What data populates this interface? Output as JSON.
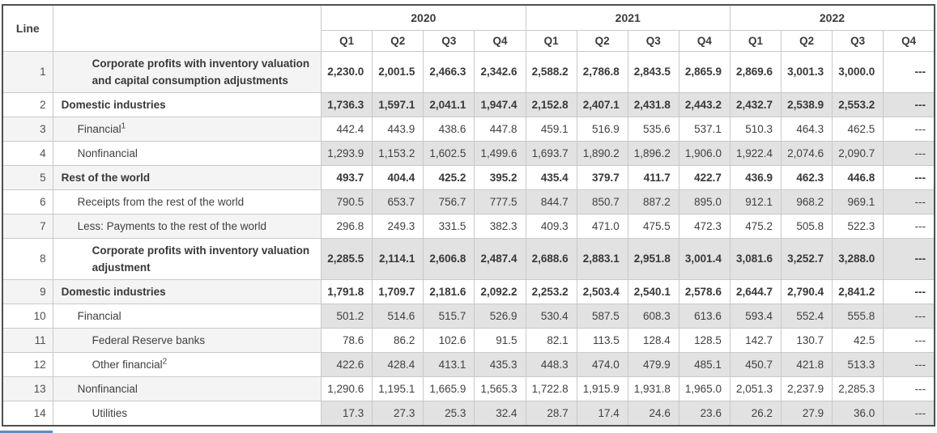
{
  "table": {
    "line_header": "Line",
    "description_header": "",
    "missing_value": "---",
    "year_groups": [
      {
        "year": "2020",
        "quarters": [
          "Q1",
          "Q2",
          "Q3",
          "Q4"
        ]
      },
      {
        "year": "2021",
        "quarters": [
          "Q1",
          "Q2",
          "Q3",
          "Q4"
        ]
      },
      {
        "year": "2022",
        "quarters": [
          "Q1",
          "Q2",
          "Q3",
          "Q4"
        ]
      }
    ],
    "rows": [
      {
        "line": "1",
        "label": "Corporate profits with inventory valuation and capital consumption adjustments",
        "sup": "",
        "bold": true,
        "indent": 2,
        "values": [
          "2,230.0",
          "2,001.5",
          "2,466.3",
          "2,342.6",
          "2,588.2",
          "2,786.8",
          "2,843.5",
          "2,865.9",
          "2,869.6",
          "3,001.3",
          "3,000.0",
          "---"
        ]
      },
      {
        "line": "2",
        "label": "Domestic industries",
        "sup": "",
        "bold": true,
        "indent": 0,
        "values": [
          "1,736.3",
          "1,597.1",
          "2,041.1",
          "1,947.4",
          "2,152.8",
          "2,407.1",
          "2,431.8",
          "2,443.2",
          "2,432.7",
          "2,538.9",
          "2,553.2",
          "---"
        ]
      },
      {
        "line": "3",
        "label": "Financial",
        "sup": "1",
        "bold": false,
        "indent": 1,
        "values": [
          "442.4",
          "443.9",
          "438.6",
          "447.8",
          "459.1",
          "516.9",
          "535.6",
          "537.1",
          "510.3",
          "464.3",
          "462.5",
          "---"
        ]
      },
      {
        "line": "4",
        "label": "Nonfinancial",
        "sup": "",
        "bold": false,
        "indent": 1,
        "values": [
          "1,293.9",
          "1,153.2",
          "1,602.5",
          "1,499.6",
          "1,693.7",
          "1,890.2",
          "1,896.2",
          "1,906.0",
          "1,922.4",
          "2,074.6",
          "2,090.7",
          "---"
        ]
      },
      {
        "line": "5",
        "label": "Rest of the world",
        "sup": "",
        "bold": true,
        "indent": 0,
        "values": [
          "493.7",
          "404.4",
          "425.2",
          "395.2",
          "435.4",
          "379.7",
          "411.7",
          "422.7",
          "436.9",
          "462.3",
          "446.8",
          "---"
        ]
      },
      {
        "line": "6",
        "label": "Receipts from the rest of the world",
        "sup": "",
        "bold": false,
        "indent": 1,
        "values": [
          "790.5",
          "653.7",
          "756.7",
          "777.5",
          "844.7",
          "850.7",
          "887.2",
          "895.0",
          "912.1",
          "968.2",
          "969.1",
          "---"
        ]
      },
      {
        "line": "7",
        "label": "Less: Payments to the rest of the world",
        "sup": "",
        "bold": false,
        "indent": 1,
        "values": [
          "296.8",
          "249.3",
          "331.5",
          "382.3",
          "409.3",
          "471.0",
          "475.5",
          "472.3",
          "475.2",
          "505.8",
          "522.3",
          "---"
        ]
      },
      {
        "line": "8",
        "label": "Corporate profits with inventory valuation adjustment",
        "sup": "",
        "bold": true,
        "indent": 2,
        "values": [
          "2,285.5",
          "2,114.1",
          "2,606.8",
          "2,487.4",
          "2,688.6",
          "2,883.1",
          "2,951.8",
          "3,001.4",
          "3,081.6",
          "3,252.7",
          "3,288.0",
          "---"
        ]
      },
      {
        "line": "9",
        "label": "Domestic industries",
        "sup": "",
        "bold": true,
        "indent": 0,
        "values": [
          "1,791.8",
          "1,709.7",
          "2,181.6",
          "2,092.2",
          "2,253.2",
          "2,503.4",
          "2,540.1",
          "2,578.6",
          "2,644.7",
          "2,790.4",
          "2,841.2",
          "---"
        ]
      },
      {
        "line": "10",
        "label": "Financial",
        "sup": "",
        "bold": false,
        "indent": 1,
        "values": [
          "501.2",
          "514.6",
          "515.7",
          "526.9",
          "530.4",
          "587.5",
          "608.3",
          "613.6",
          "593.4",
          "552.4",
          "555.8",
          "---"
        ]
      },
      {
        "line": "11",
        "label": "Federal Reserve banks",
        "sup": "",
        "bold": false,
        "indent": 2,
        "values": [
          "78.6",
          "86.2",
          "102.6",
          "91.5",
          "82.1",
          "113.5",
          "128.4",
          "128.5",
          "142.7",
          "130.7",
          "42.5",
          "---"
        ]
      },
      {
        "line": "12",
        "label": "Other financial",
        "sup": "2",
        "bold": false,
        "indent": 2,
        "values": [
          "422.6",
          "428.4",
          "413.1",
          "435.3",
          "448.3",
          "474.0",
          "479.9",
          "485.1",
          "450.7",
          "421.8",
          "513.3",
          "---"
        ]
      },
      {
        "line": "13",
        "label": "Nonfinancial",
        "sup": "",
        "bold": false,
        "indent": 1,
        "values": [
          "1,290.6",
          "1,195.1",
          "1,665.9",
          "1,565.3",
          "1,722.8",
          "1,915.9",
          "1,931.8",
          "1,965.0",
          "2,051.3",
          "2,237.9",
          "2,285.3",
          "---"
        ]
      },
      {
        "line": "14",
        "label": "Utilities",
        "sup": "",
        "bold": false,
        "indent": 2,
        "values": [
          "17.3",
          "27.3",
          "25.3",
          "32.4",
          "28.7",
          "17.4",
          "24.6",
          "23.6",
          "26.2",
          "27.9",
          "36.0",
          "---"
        ]
      }
    ]
  },
  "colors": {
    "data_stripe": "#e2e2e2",
    "label_stripe": "#f4f4f4",
    "outer_border": "#4f4f4f",
    "inner_border": "#c9c9c9",
    "text": "#404040",
    "scroll_thumb": "#5b8bd0"
  }
}
